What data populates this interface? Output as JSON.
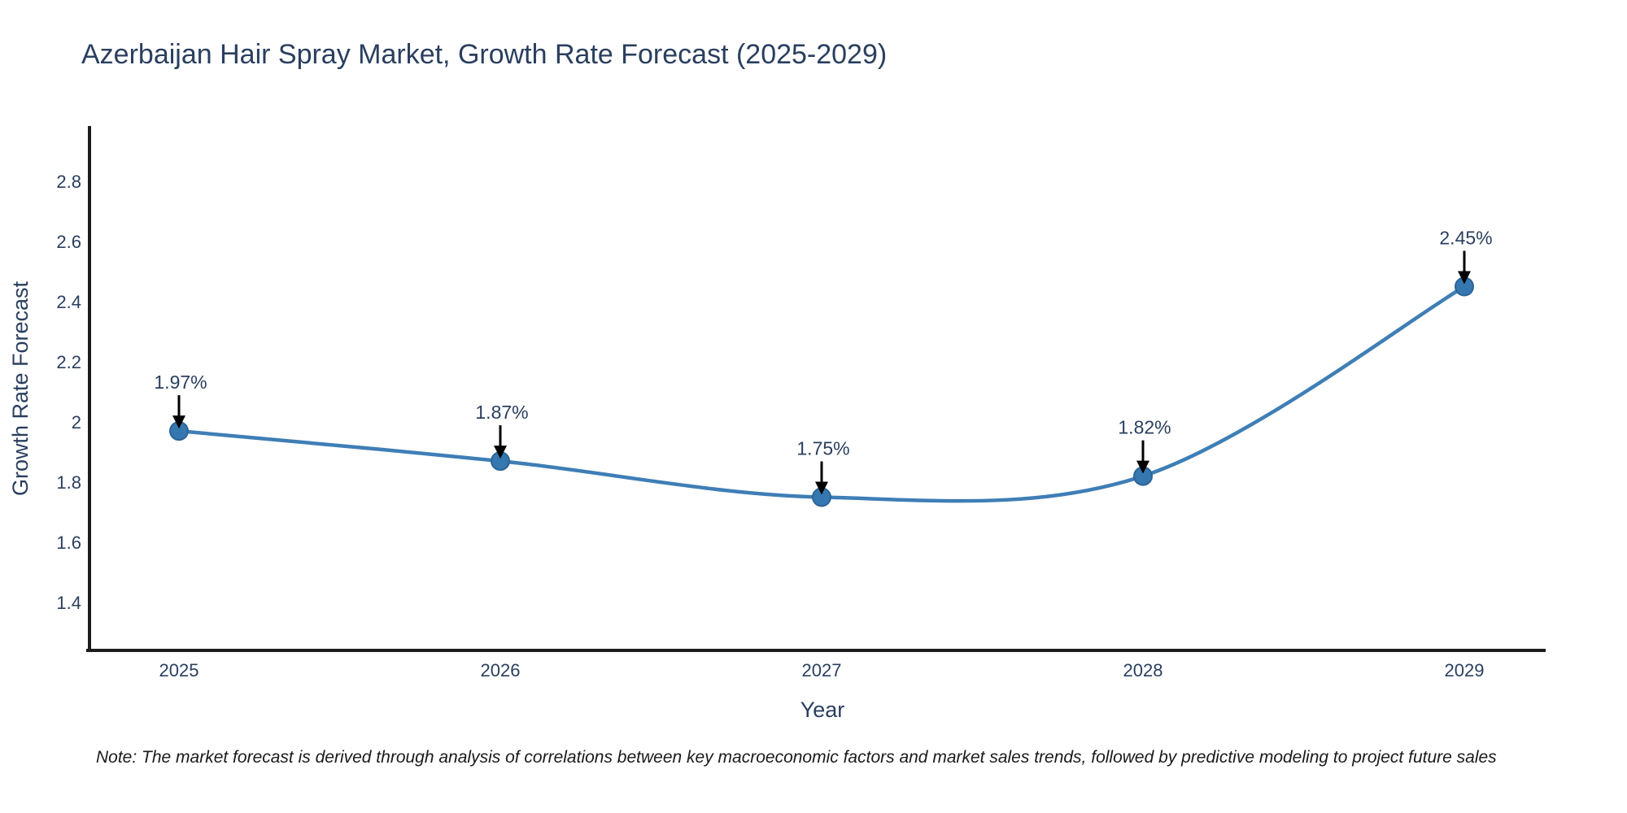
{
  "page": {
    "background": "#ffffff"
  },
  "chart_data": {
    "type": "line",
    "title": "Azerbaijan Hair Spray Market, Growth Rate Forecast (2025-2029)",
    "xlabel": "Year",
    "ylabel": "Growth Rate Forecast",
    "categories": [
      "2025",
      "2026",
      "2027",
      "2028",
      "2029"
    ],
    "values": [
      1.97,
      1.87,
      1.75,
      1.82,
      2.45
    ],
    "point_labels": [
      "1.97%",
      "1.87%",
      "1.75%",
      "1.82%",
      "2.45%"
    ],
    "ytick_values": [
      2.8,
      2.6,
      2.4,
      2.2,
      2.0,
      1.8,
      1.6,
      1.4
    ],
    "ytick_labels": [
      "2.8",
      "2.6",
      "2.4",
      "2.2",
      "2",
      "1.8",
      "1.6",
      "1.4"
    ],
    "ylim": [
      1.24,
      2.98
    ],
    "grid": false,
    "legend": false,
    "line_color": "#3f7eb6",
    "marker_color": "#3577b0",
    "marker_edge_color": "#2c6496",
    "annotation_arrow_color": "#000000",
    "text_color": "#2a3f5f",
    "axis_color": "#1c1c1c",
    "note_color": "#1a1a1a",
    "note": "Note: The market forecast is derived through analysis of correlations between key macroeconomic factors and market sales trends, followed by predictive modeling to project future sales"
  }
}
